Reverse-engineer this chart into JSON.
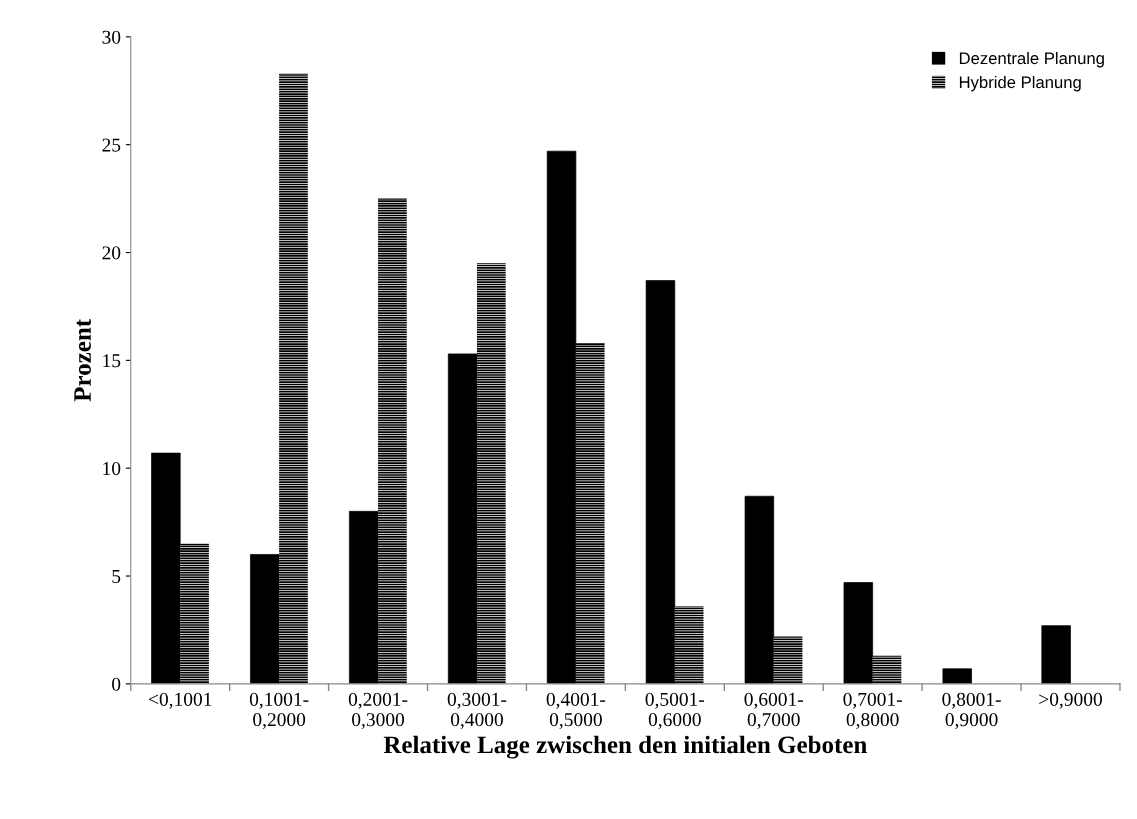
{
  "chart_data": {
    "type": "bar",
    "xlabel": "Relative Lage zwischen den initialen Geboten",
    "ylabel": "Prozent",
    "categories": [
      "<0,1001",
      "0,1001-\n0,2000",
      "0,2001-\n0,3000",
      "0,3001-\n0,4000",
      "0,4001-\n0,5000",
      "0,5001-\n0,6000",
      "0,6001-\n0,7000",
      "0,7001-\n0,8000",
      "0,8001-\n0,9000",
      ">0,9000"
    ],
    "series": [
      {
        "name": "Dezentrale Planung",
        "color": "#000000",
        "values": [
          10.7,
          6.0,
          8.0,
          15.3,
          24.7,
          18.7,
          8.7,
          4.7,
          0.7,
          2.7
        ]
      },
      {
        "name": "Hybride Planung",
        "color": "#ffffff",
        "values": [
          6.5,
          28.3,
          22.5,
          19.5,
          15.8,
          3.6,
          2.2,
          1.3,
          0,
          0
        ]
      }
    ],
    "ylim": [
      0,
      30
    ],
    "yticks": [
      0,
      5,
      10,
      15,
      20,
      25,
      30
    ],
    "grid": false,
    "legend": "top right"
  }
}
